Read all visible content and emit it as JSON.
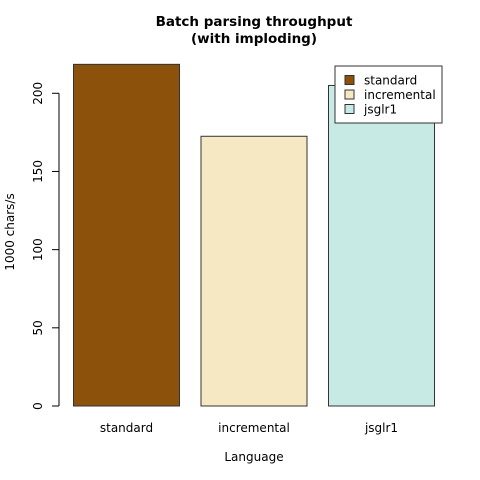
{
  "chart_data": {
    "type": "bar",
    "title_lines": [
      "Batch parsing throughput",
      "(with imploding)"
    ],
    "xlabel": "Language",
    "ylabel": "1000 chars/s",
    "categories": [
      "standard",
      "incremental",
      "jsglr1"
    ],
    "values": [
      218.5,
      172.5,
      205
    ],
    "colors": [
      "#8c510a",
      "#f6e8c3",
      "#c7eae5"
    ],
    "ylim": [
      0,
      220
    ],
    "yticks": [
      0,
      50,
      100,
      150,
      200
    ],
    "grid": false,
    "legend": {
      "placement": "top-right",
      "entries": [
        "standard",
        "incremental",
        "jsglr1"
      ]
    }
  }
}
